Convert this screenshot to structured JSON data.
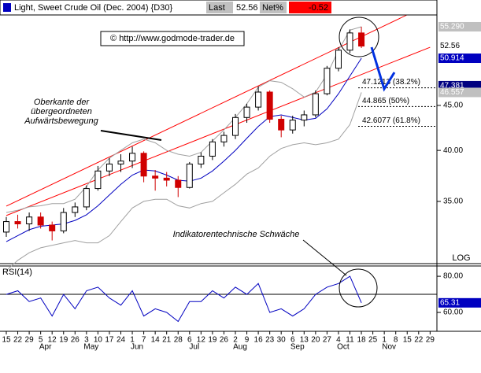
{
  "header": {
    "title": "Light, Sweet Crude Oil (Dec. 2004) {D30}",
    "last_label": "Last",
    "last_value": 52.56,
    "net_label": "Net%",
    "net_value": -0.52
  },
  "copyright": "© http://www.godmode-trader.de",
  "chart_data": [
    {
      "type": "candlestick",
      "log_scale": true,
      "log_label": "LOG",
      "categories": [
        "15",
        "22",
        "29",
        "5",
        "12",
        "19",
        "26",
        "3",
        "10",
        "17",
        "24",
        "1",
        "7",
        "14",
        "21",
        "28",
        "6",
        "12",
        "19",
        "26",
        "2",
        "9",
        "16",
        "23",
        "30",
        "6",
        "13",
        "20",
        "27",
        "4",
        "11",
        "18",
        "25",
        "1",
        "8",
        "15",
        "22",
        "29"
      ],
      "month_labels": [
        null,
        null,
        null,
        "Apr",
        null,
        null,
        null,
        "May",
        null,
        null,
        null,
        "Jun",
        null,
        null,
        null,
        null,
        "Jul",
        null,
        null,
        null,
        "Aug",
        null,
        null,
        null,
        null,
        "Sep",
        null,
        null,
        null,
        "Oct",
        null,
        null,
        null,
        "Nov",
        null,
        null,
        null,
        null
      ],
      "up_color": "#000000",
      "down_color": "#d00000",
      "open": [
        32.3,
        33.2,
        33.0,
        33.6,
        32.9,
        32.4,
        34.0,
        34.5,
        36.2,
        37.9,
        38.6,
        38.9,
        39.7,
        37.4,
        37.2,
        37.0,
        36.3,
        38.6,
        39.4,
        40.9,
        41.6,
        43.6,
        44.8,
        46.6,
        43.4,
        42.2,
        43.3,
        43.9,
        46.4,
        49.6,
        52.0,
        54.4,
        null,
        null,
        null,
        null,
        null,
        null
      ],
      "high": [
        33.6,
        33.8,
        34.0,
        34.0,
        33.2,
        34.4,
        34.9,
        36.5,
        38.4,
        39.2,
        39.6,
        40.4,
        39.9,
        38.0,
        37.8,
        37.4,
        38.8,
        39.8,
        41.2,
        42.0,
        44.0,
        45.2,
        47.3,
        46.8,
        43.8,
        43.8,
        44.4,
        46.8,
        49.9,
        52.4,
        54.9,
        55.3,
        null,
        null,
        null,
        null,
        null,
        null
      ],
      "low": [
        31.9,
        32.6,
        32.4,
        32.6,
        31.6,
        32.2,
        33.6,
        34.2,
        36.0,
        37.4,
        37.8,
        38.2,
        36.8,
        36.0,
        36.4,
        35.4,
        36.2,
        38.2,
        39.0,
        40.4,
        41.2,
        43.0,
        44.4,
        43.0,
        41.4,
        41.8,
        42.6,
        43.6,
        46.2,
        49.2,
        51.6,
        52.3,
        null,
        null,
        null,
        null,
        null,
        null
      ],
      "close": [
        33.2,
        33.0,
        33.6,
        32.9,
        32.4,
        34.0,
        34.5,
        36.2,
        37.9,
        38.6,
        38.9,
        39.7,
        37.4,
        37.2,
        37.0,
        36.3,
        38.6,
        39.4,
        40.9,
        41.6,
        43.6,
        44.8,
        46.6,
        43.4,
        42.2,
        43.3,
        43.9,
        46.4,
        49.6,
        52.0,
        54.4,
        52.56,
        null,
        null,
        null,
        null,
        null,
        null
      ],
      "lines": [
        {
          "color": "#a0a0a0",
          "values": [
            34.0,
            34.2,
            34.5,
            34.6,
            34.8,
            34.8,
            35.2,
            36.4,
            38.0,
            39.2,
            40.0,
            40.8,
            41.2,
            40.8,
            40.0,
            39.6,
            39.4,
            39.8,
            41.0,
            42.2,
            43.6,
            45.2,
            47.2,
            48.0,
            47.8,
            47.0,
            46.0,
            46.6,
            48.8,
            52.0,
            54.8,
            55.29,
            null,
            null,
            null,
            null,
            null,
            null
          ]
        },
        {
          "color": "#a0a0a0",
          "values": [
            29.2,
            30.0,
            30.6,
            31.0,
            31.2,
            31.4,
            31.6,
            31.4,
            31.4,
            32.0,
            33.2,
            34.4,
            35.0,
            35.2,
            35.2,
            34.6,
            34.4,
            34.8,
            35.0,
            35.8,
            36.6,
            37.6,
            38.2,
            39.4,
            40.2,
            40.6,
            40.8,
            40.6,
            40.8,
            41.2,
            42.8,
            46.557,
            null,
            null,
            null,
            null,
            null,
            null
          ]
        },
        {
          "color": "#0000c0",
          "values": [
            31.5,
            32.0,
            32.5,
            32.8,
            32.9,
            33.0,
            33.3,
            33.8,
            34.6,
            35.6,
            36.6,
            37.5,
            38.0,
            37.9,
            37.5,
            37.0,
            36.9,
            37.2,
            37.9,
            38.9,
            40.0,
            41.3,
            42.6,
            43.7,
            43.9,
            43.6,
            43.3,
            43.5,
            44.6,
            46.4,
            48.6,
            50.914,
            null,
            null,
            null,
            null,
            null,
            null
          ]
        }
      ],
      "trendlines": [
        {
          "color": "#ff0000",
          "x": [
            0,
            37
          ],
          "values": [
            34.57,
            58.7
          ]
        },
        {
          "color": "#ff0000",
          "x": [
            0,
            37
          ],
          "values": [
            33.73,
            52.4
          ]
        }
      ],
      "fib_levels": [
        {
          "value": 47.1213,
          "label": "47.1213 (38.2%)"
        },
        {
          "value": 44.865,
          "label": "44.865 (50%)"
        },
        {
          "value": 42.6077,
          "label": "42.6077 (61.8%)"
        }
      ],
      "ylim": [
        29.74,
        59.3
      ],
      "yticks": [
        {
          "value": 35,
          "label": "35.00"
        },
        {
          "value": 40,
          "label": "40.00"
        },
        {
          "value": 45,
          "label": "45.00"
        }
      ],
      "price_labels": [
        {
          "value": 55.29,
          "label": "55.290",
          "color": "#c0c0c0",
          "text_color": "#ffffff"
        },
        {
          "value": 52.56,
          "label": "52.56",
          "color": "#ffffff",
          "text_color": "#000000"
        },
        {
          "value": 50.914,
          "label": "50.914",
          "color": "#0000c0",
          "text_color": "#ffffff"
        },
        {
          "value": 47.381,
          "label": "47.381",
          "color": "#000080",
          "text_color": "#ffffff"
        },
        {
          "value": 46.557,
          "label": "46.557",
          "color": "#c0c0c0",
          "text_color": "#ffffff"
        }
      ],
      "annotations": [
        "Oberkante der",
        "übergeordneten",
        "Aufwärtsbewegung",
        "Indikatorentechnische Schwäche"
      ]
    },
    {
      "type": "line",
      "title": "RSI(14)",
      "color": "#0000c0",
      "values": [
        70,
        72,
        66,
        68,
        58,
        70,
        62,
        72,
        74,
        68,
        64,
        72,
        58,
        62,
        60,
        55,
        66,
        66,
        72,
        68,
        74,
        70,
        76,
        60,
        62,
        58,
        62,
        70,
        74,
        76,
        80,
        65.31,
        null,
        null,
        null,
        null,
        null,
        null
      ],
      "reference_line": 70,
      "ylim": [
        50,
        85.7
      ],
      "yticks": [
        {
          "value": 60,
          "label": "60.00"
        },
        {
          "value": 80,
          "label": "80.00"
        }
      ],
      "last_label": {
        "value": 65.31,
        "label": "65.31",
        "color": "#0000c0",
        "text_color": "#ffffff"
      }
    }
  ]
}
